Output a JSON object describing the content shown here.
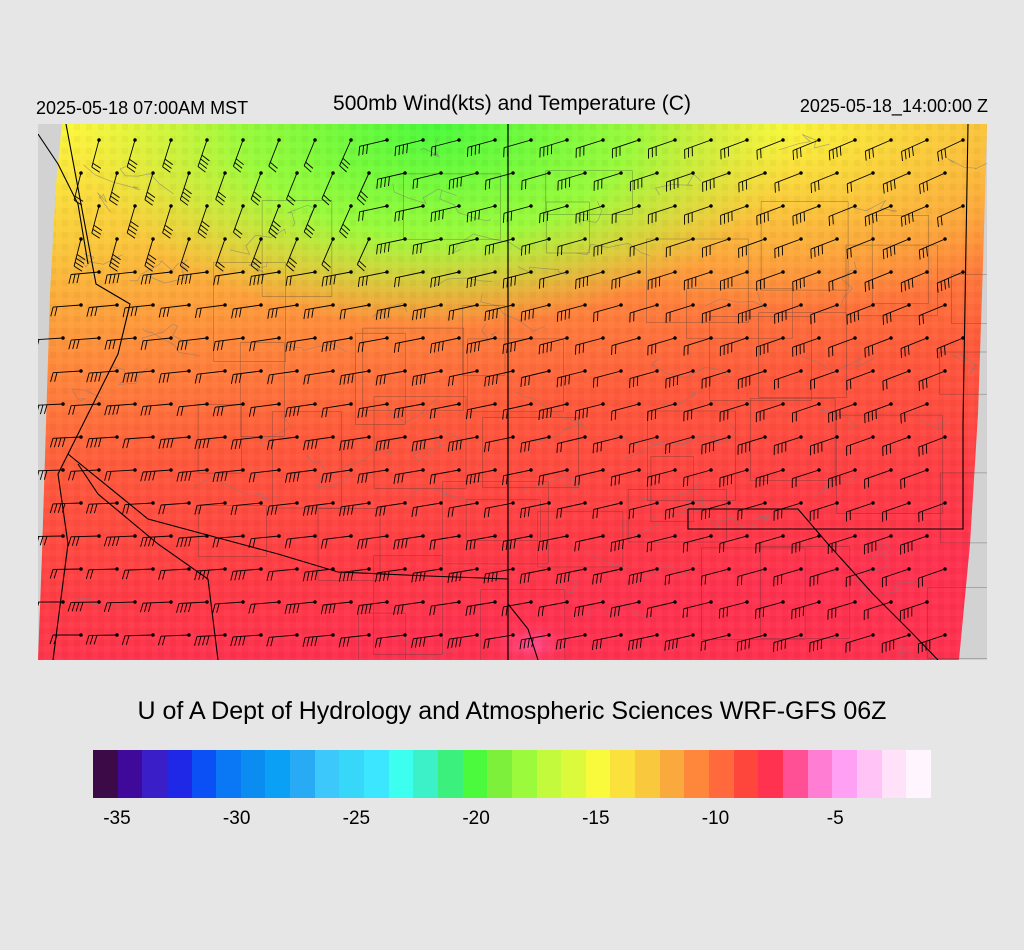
{
  "header": {
    "local_time": "2025-05-18 07:00AM MST",
    "title": "500mb Wind(kts) and Temperature (C)",
    "valid_time": "2025-05-18_14:00:00 Z"
  },
  "credit": "U of A Dept of Hydrology and Atmospheric Sciences WRF-GFS 06Z",
  "colorbar": {
    "colors": [
      "#3b0a47",
      "#3f0a99",
      "#3a1ec8",
      "#1e28e6",
      "#0a50f5",
      "#0a78f5",
      "#0a8cf0",
      "#0aa0f5",
      "#28aaf5",
      "#3cc8fa",
      "#37d7fa",
      "#3ce6ff",
      "#3cfff0",
      "#3cf0c8",
      "#3cf07d",
      "#4bfa3c",
      "#7df03c",
      "#9bfa3c",
      "#c3fa3c",
      "#dcfa3c",
      "#fafa3c",
      "#fae13c",
      "#fac83c",
      "#faaa3c",
      "#ff873c",
      "#ff693c",
      "#ff463c",
      "#ff3250",
      "#ff5096",
      "#ff7dd2",
      "#ffa0f5",
      "#ffc3f5",
      "#ffe1fa",
      "#fff5ff"
    ],
    "tick_labels": [
      "-35",
      "-30",
      "-25",
      "-20",
      "-15",
      "-10",
      "-5"
    ],
    "tick_values": [
      -35,
      -30,
      -25,
      -20,
      -15,
      -10,
      -5
    ],
    "range": [
      -36,
      -1
    ]
  },
  "map": {
    "type": "heatmap",
    "variable": "500mb temperature (C) with wind barbs (kts)",
    "background_color": "#d2d2d2",
    "palette": {
      "green": "#4bfa3c",
      "yellow_green": "#c3fa3c",
      "yellow": "#fafa3c",
      "orange": "#ffa03c",
      "red_orange": "#ff693c",
      "red": "#ff463c",
      "crimson": "#ff3250",
      "pink": "#ff5096"
    }
  }
}
